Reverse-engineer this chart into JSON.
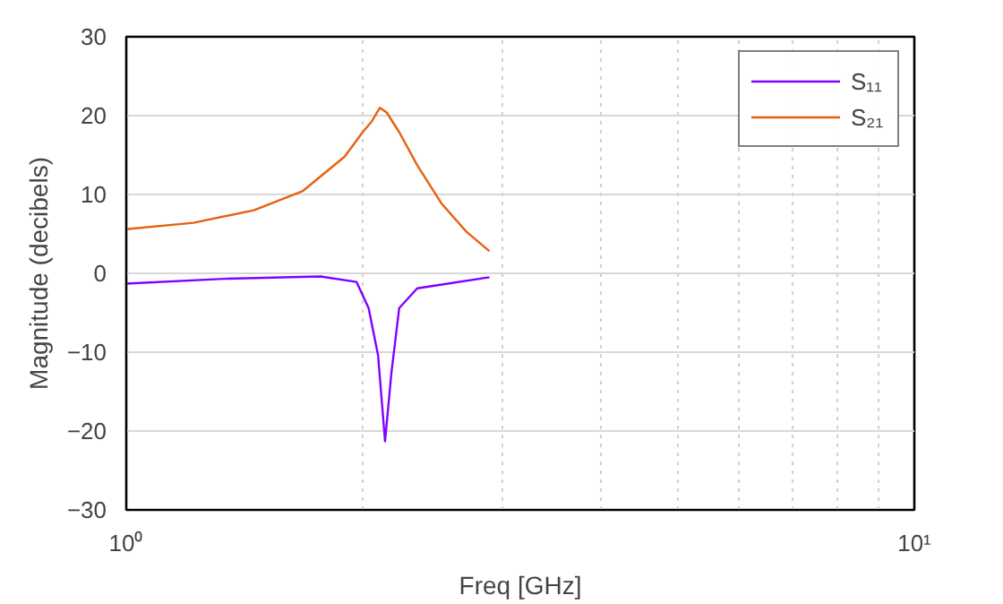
{
  "chart_data": {
    "type": "line",
    "xlabel": "Freq [GHz]",
    "ylabel": "Magnitude (decibels)",
    "log": "x",
    "xlim": [
      1,
      10
    ],
    "xticks": [
      {
        "value": 1,
        "label": "10⁰"
      },
      {
        "value": 10,
        "label": "10¹"
      }
    ],
    "ylim": [
      -30,
      30
    ],
    "yticks": [
      -30,
      -20,
      -10,
      0,
      10,
      20,
      30
    ],
    "grid": true,
    "legend": "top right",
    "line_style": "solid",
    "marker": "none",
    "series": [
      {
        "name": "S₁₁",
        "color": "#7f00ff",
        "x": [
          1.0,
          1.33,
          1.764,
          1.96,
          2.03,
          2.087,
          2.13,
          2.17,
          2.22,
          2.34,
          2.89
        ],
        "values": [
          -1.3,
          -0.7,
          -0.4,
          -1.1,
          -4.4,
          -10.4,
          -21.3,
          -12.6,
          -4.4,
          -1.9,
          -0.5
        ]
      },
      {
        "name": "S₂₁",
        "color": "#e8600f",
        "x": [
          1.0,
          1.217,
          1.452,
          1.673,
          1.893,
          1.995,
          2.05,
          2.098,
          2.14,
          2.22,
          2.34,
          2.51,
          2.7,
          2.89
        ],
        "values": [
          5.6,
          6.4,
          8.0,
          10.4,
          14.8,
          17.9,
          19.3,
          21.0,
          20.4,
          17.9,
          13.7,
          8.9,
          5.3,
          2.8
        ]
      }
    ]
  }
}
